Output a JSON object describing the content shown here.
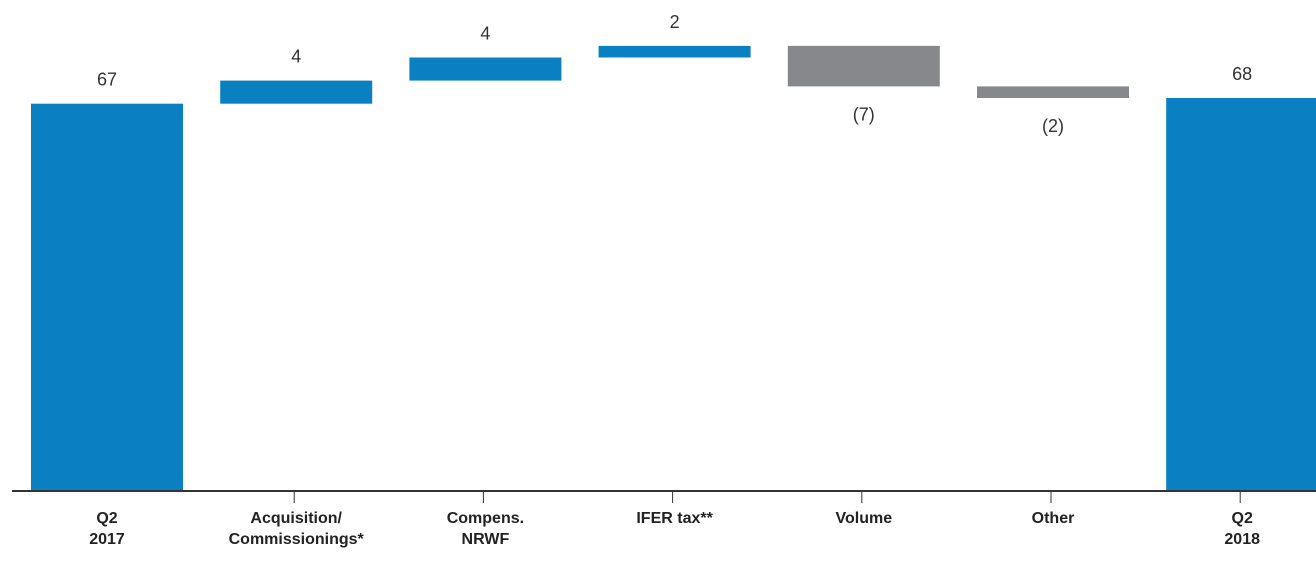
{
  "chart_data": {
    "type": "waterfall",
    "title": "",
    "xlabel": "",
    "ylabel": "",
    "ylim": [
      0,
      80
    ],
    "grid": false,
    "legend": "none",
    "colors": {
      "total": "#0a80c3",
      "increase": "#0a80c3",
      "decrease": "#86888b",
      "axis": "#333333"
    },
    "steps": [
      {
        "category": [
          "Q2",
          "2017"
        ],
        "value": 67,
        "label": "67",
        "kind": "total"
      },
      {
        "category": [
          "Acquisition/",
          "Commissionings*"
        ],
        "value": 4,
        "label": "4",
        "kind": "increase"
      },
      {
        "category": [
          "Compens.",
          "NRWF"
        ],
        "value": 4,
        "label": "4",
        "kind": "increase"
      },
      {
        "category": [
          "IFER tax**"
        ],
        "value": 2,
        "label": "2",
        "kind": "increase"
      },
      {
        "category": [
          "Volume"
        ],
        "value": -7,
        "label": "(7)",
        "kind": "decrease"
      },
      {
        "category": [
          "Other"
        ],
        "value": -2,
        "label": "(2)",
        "kind": "decrease"
      },
      {
        "category": [
          "Q2",
          "2018"
        ],
        "value": 68,
        "label": "68",
        "kind": "total"
      }
    ]
  }
}
